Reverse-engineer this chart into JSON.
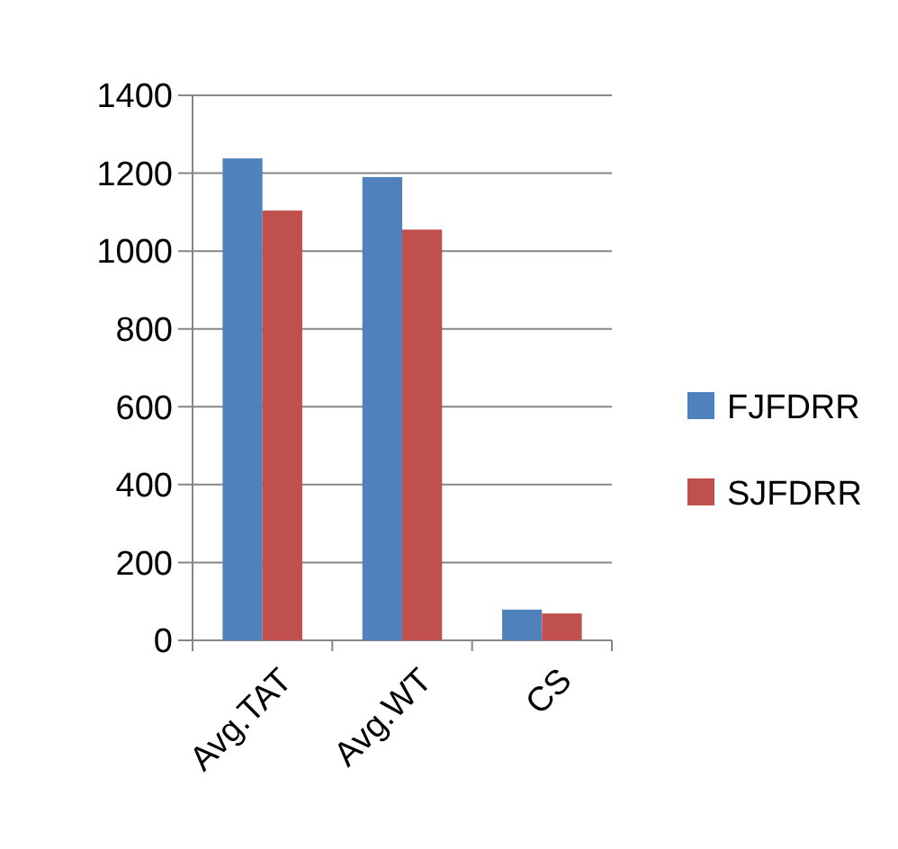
{
  "chart_data": {
    "type": "bar",
    "categories": [
      "Avg.TAT",
      "Avg.WT",
      "CS"
    ],
    "series": [
      {
        "name": "FJFDRR",
        "color": "#4f81bd",
        "values": [
          1238,
          1190,
          79
        ]
      },
      {
        "name": "SJFDRR",
        "color": "#c0504d",
        "values": [
          1104,
          1055,
          69
        ]
      }
    ],
    "ylim": [
      0,
      1400
    ],
    "yticks": [
      0,
      200,
      400,
      600,
      800,
      1000,
      1200,
      1400
    ],
    "grid": "y",
    "legend": "right"
  }
}
